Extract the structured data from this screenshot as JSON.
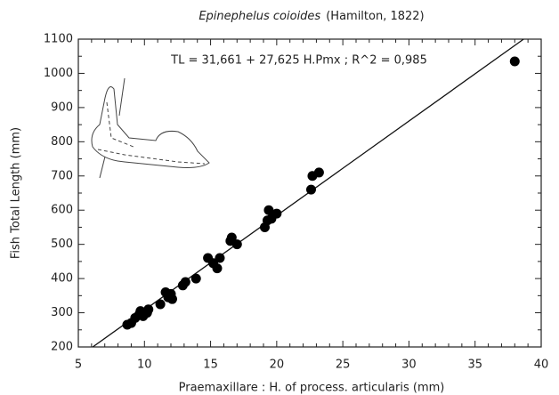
{
  "chart_data": {
    "type": "scatter",
    "title": "Epinephelus coioides",
    "title_author": "(Hamilton, 1822)",
    "annotation": "TL = 31,661 + 27,625  H.Pmx ; R^2 = 0,985",
    "x_label": "Praemaxillare : H. of process. articularis (mm)",
    "y_label": "Fish Total Length (mm)",
    "color": "#000000",
    "x": [
      8.7,
      9.0,
      9.3,
      9.6,
      9.7,
      9.9,
      10.2,
      10.3,
      11.2,
      11.6,
      11.8,
      12.0,
      12.1,
      12.9,
      13.1,
      13.9,
      14.8,
      15.2,
      15.5,
      15.7,
      16.5,
      16.6,
      17.0,
      19.1,
      19.3,
      19.4,
      19.6,
      20.0,
      22.6,
      22.7,
      23.2,
      38.0
    ],
    "values": [
      265,
      270,
      285,
      295,
      305,
      290,
      300,
      310,
      325,
      360,
      345,
      355,
      340,
      380,
      390,
      400,
      460,
      445,
      430,
      460,
      510,
      520,
      500,
      550,
      570,
      600,
      575,
      590,
      660,
      700,
      710,
      1035
    ],
    "fit_line": {
      "x": [
        6.09,
        38.67
      ],
      "values": [
        200,
        1100
      ]
    },
    "xlim": [
      5,
      40
    ],
    "ylim": [
      200,
      1100
    ],
    "xticks": [
      5,
      10,
      15,
      20,
      25,
      30,
      35,
      40
    ],
    "yticks": [
      200,
      300,
      400,
      500,
      600,
      700,
      800,
      900,
      1000,
      1100
    ]
  }
}
